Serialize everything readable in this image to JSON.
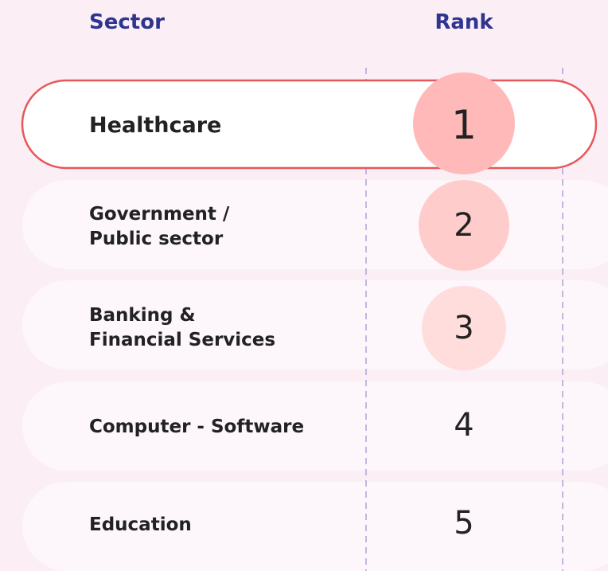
{
  "header": {
    "sector": "Sector",
    "rank": "Rank"
  },
  "rows": [
    {
      "sector": [
        "Healthcare"
      ],
      "rank": 1
    },
    {
      "sector": [
        "Government /",
        "Public sector"
      ],
      "rank": 2
    },
    {
      "sector": [
        "Banking &",
        "Financial Services"
      ],
      "rank": 3
    },
    {
      "sector": [
        "Computer - Software"
      ],
      "rank": 4
    },
    {
      "sector": [
        "Education"
      ],
      "rank": 5
    }
  ]
}
